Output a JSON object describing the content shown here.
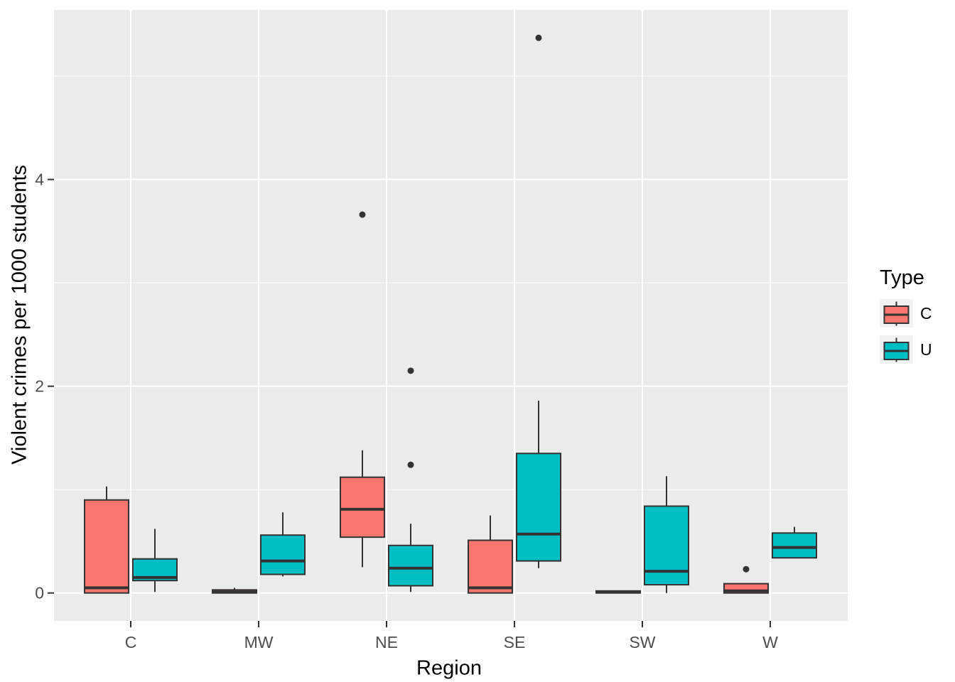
{
  "figure": {
    "background": "#FFFFFF"
  },
  "axes": {
    "x_title": "Region",
    "y_title": "Violent crimes per 1000 students",
    "x_tick_labels": [
      "C",
      "MW",
      "NE",
      "SE",
      "SW",
      "W"
    ],
    "y_tick_labels": [
      "0",
      "2",
      "4"
    ]
  },
  "legend": {
    "title": "Type",
    "items": [
      {
        "label": "C",
        "color": "#F8766D"
      },
      {
        "label": "U",
        "color": "#00BFC4"
      }
    ]
  },
  "colors": {
    "panel_background": "#EBEBEB",
    "gridline": "#FFFFFF",
    "tick_mark": "#333333",
    "tick_text": "#4D4D4D",
    "axis_title_text": "#000000",
    "box_outline": "#333333",
    "outlier": "#333333",
    "legend_key_background": "#F2F2F2"
  },
  "chart_data": {
    "type": "boxplot",
    "title": "",
    "xlabel": "Region",
    "ylabel": "Violent crimes per 1000 students",
    "categories": [
      "C",
      "MW",
      "NE",
      "SE",
      "SW",
      "W"
    ],
    "legend_title": "Type",
    "legend_position": "right",
    "grid": true,
    "ylim": [
      -0.27,
      5.64
    ],
    "y_major_ticks": [
      0,
      2,
      4
    ],
    "y_minor_gridlines": [
      1,
      3,
      5
    ],
    "series": [
      {
        "name": "C",
        "fill": "#F8766D",
        "boxes": [
          {
            "category": "C",
            "whisker_low": 0.0,
            "q1": 0.0,
            "median": 0.05,
            "q3": 0.9,
            "whisker_high": 1.03,
            "outliers": []
          },
          {
            "category": "MW",
            "whisker_low": 0.0,
            "q1": 0.0,
            "median": 0.01,
            "q3": 0.03,
            "whisker_high": 0.05,
            "outliers": []
          },
          {
            "category": "NE",
            "whisker_low": 0.25,
            "q1": 0.54,
            "median": 0.81,
            "q3": 1.12,
            "whisker_high": 1.38,
            "outliers": [
              3.66
            ]
          },
          {
            "category": "SE",
            "whisker_low": 0.0,
            "q1": 0.0,
            "median": 0.05,
            "q3": 0.51,
            "whisker_high": 0.75,
            "outliers": []
          },
          {
            "category": "SW",
            "whisker_low": 0.0,
            "q1": 0.0,
            "median": 0.01,
            "q3": 0.02,
            "whisker_high": 0.02,
            "outliers": []
          },
          {
            "category": "W",
            "whisker_low": 0.0,
            "q1": 0.0,
            "median": 0.02,
            "q3": 0.09,
            "whisker_high": 0.09,
            "outliers": [
              0.23
            ]
          }
        ]
      },
      {
        "name": "U",
        "fill": "#00BFC4",
        "boxes": [
          {
            "category": "C",
            "whisker_low": 0.01,
            "q1": 0.12,
            "median": 0.15,
            "q3": 0.33,
            "whisker_high": 0.62,
            "outliers": []
          },
          {
            "category": "MW",
            "whisker_low": 0.16,
            "q1": 0.18,
            "median": 0.31,
            "q3": 0.56,
            "whisker_high": 0.78,
            "outliers": []
          },
          {
            "category": "NE",
            "whisker_low": 0.01,
            "q1": 0.07,
            "median": 0.24,
            "q3": 0.46,
            "whisker_high": 0.67,
            "outliers": [
              1.24,
              2.15
            ]
          },
          {
            "category": "SE",
            "whisker_low": 0.24,
            "q1": 0.31,
            "median": 0.57,
            "q3": 1.35,
            "whisker_high": 1.86,
            "outliers": [
              5.37
            ]
          },
          {
            "category": "SW",
            "whisker_low": 0.0,
            "q1": 0.08,
            "median": 0.21,
            "q3": 0.84,
            "whisker_high": 1.13,
            "outliers": []
          },
          {
            "category": "W",
            "whisker_low": 0.34,
            "q1": 0.34,
            "median": 0.44,
            "q3": 0.58,
            "whisker_high": 0.64,
            "outliers": []
          }
        ]
      }
    ]
  }
}
